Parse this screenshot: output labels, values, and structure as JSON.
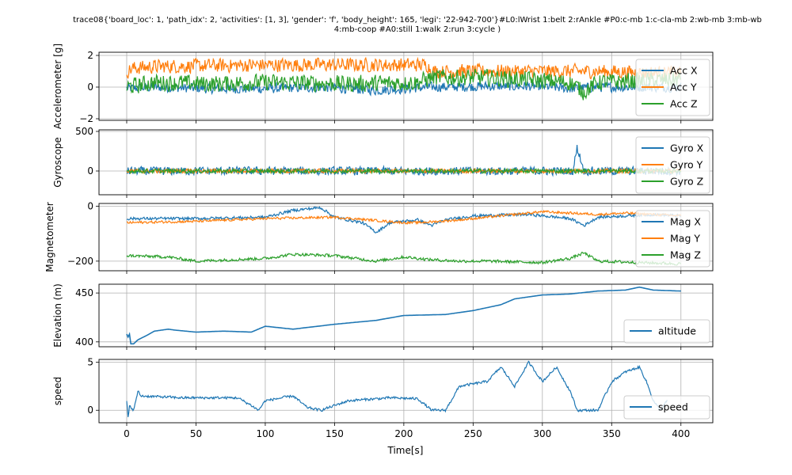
{
  "figure": {
    "title_line1": "trace08{'board_loc': 1, 'path_idx': 2, 'activities': [1, 3], 'gender': 'f', 'body_height': 165, 'legi': '22-942-700'}#L0:lWrist 1:belt 2:rAnkle #P0:c-mb 1:c-cla-mb 2:wb-mb 3:mb-wb",
    "title_line2": "4:mb-coop #A0:still 1:walk 2:run 3:cycle )",
    "xlabel": "Time[s]"
  },
  "colors": {
    "blue": "#1f77b4",
    "orange": "#ff7f0e",
    "green": "#2ca02c"
  },
  "chart_data": [
    {
      "type": "line",
      "ylabel": "Accelerometer [g]",
      "xlim": [
        -20,
        423
      ],
      "ylim": [
        -2.1,
        2.2
      ],
      "yticks": [
        -2,
        0,
        2
      ],
      "grid": true,
      "legend_position": "right",
      "series": [
        {
          "name": "Acc X",
          "color": "#1f77b4",
          "noise": 0.35,
          "points": [
            [
              0,
              -0.1
            ],
            [
              20,
              0.0
            ],
            [
              60,
              -0.1
            ],
            [
              100,
              -0.1
            ],
            [
              140,
              0.0
            ],
            [
              180,
              -0.2
            ],
            [
              220,
              0.0
            ],
            [
              260,
              0.05
            ],
            [
              300,
              0.05
            ],
            [
              320,
              -0.1
            ],
            [
              340,
              0.0
            ],
            [
              380,
              0.0
            ],
            [
              400,
              0.0
            ]
          ]
        },
        {
          "name": "Acc Y",
          "color": "#ff7f0e",
          "noise": 0.5,
          "points": [
            [
              0,
              1.0
            ],
            [
              5,
              1.2
            ],
            [
              20,
              1.3
            ],
            [
              100,
              1.4
            ],
            [
              200,
              1.4
            ],
            [
              217,
              1.4
            ],
            [
              220,
              1.0
            ],
            [
              260,
              1.0
            ],
            [
              300,
              1.0
            ],
            [
              340,
              1.0
            ],
            [
              380,
              0.9
            ],
            [
              400,
              0.9
            ]
          ]
        },
        {
          "name": "Acc Z",
          "color": "#2ca02c",
          "noise": 0.6,
          "points": [
            [
              0,
              0.0
            ],
            [
              20,
              0.3
            ],
            [
              60,
              0.2
            ],
            [
              100,
              0.3
            ],
            [
              160,
              0.2
            ],
            [
              210,
              0.3
            ],
            [
              220,
              0.6
            ],
            [
              260,
              0.6
            ],
            [
              300,
              0.4
            ],
            [
              320,
              0.3
            ],
            [
              330,
              -0.3
            ],
            [
              340,
              0.3
            ],
            [
              380,
              0.4
            ],
            [
              400,
              0.5
            ]
          ]
        }
      ]
    },
    {
      "type": "line",
      "ylabel": "Gyroscope",
      "xlim": [
        -20,
        423
      ],
      "ylim": [
        -300,
        520
      ],
      "yticks": [
        0,
        500
      ],
      "grid": true,
      "legend_position": "right",
      "series": [
        {
          "name": "Gyro X",
          "color": "#1f77b4",
          "noise": 60,
          "points": [
            [
              0,
              0
            ],
            [
              50,
              0
            ],
            [
              100,
              0
            ],
            [
              150,
              0
            ],
            [
              200,
              0
            ],
            [
              250,
              0
            ],
            [
              300,
              0
            ],
            [
              322,
              0
            ],
            [
              325,
              300
            ],
            [
              330,
              0
            ],
            [
              350,
              0
            ],
            [
              400,
              0
            ]
          ]
        },
        {
          "name": "Gyro Y",
          "color": "#ff7f0e",
          "noise": 30,
          "points": [
            [
              0,
              0
            ],
            [
              100,
              0
            ],
            [
              200,
              0
            ],
            [
              300,
              0
            ],
            [
              400,
              0
            ]
          ]
        },
        {
          "name": "Gyro Z",
          "color": "#2ca02c",
          "noise": 30,
          "points": [
            [
              0,
              0
            ],
            [
              100,
              0
            ],
            [
              200,
              0
            ],
            [
              300,
              0
            ],
            [
              400,
              0
            ]
          ]
        }
      ]
    },
    {
      "type": "line",
      "ylabel": "Magnetometer",
      "xlim": [
        -20,
        423
      ],
      "ylim": [
        -235,
        10
      ],
      "yticks": [
        -200,
        0
      ],
      "grid": true,
      "legend_position": "right",
      "series": [
        {
          "name": "Mag X",
          "color": "#1f77b4",
          "noise": 6,
          "points": [
            [
              0,
              -45
            ],
            [
              50,
              -45
            ],
            [
              100,
              -40
            ],
            [
              120,
              -15
            ],
            [
              140,
              -5
            ],
            [
              150,
              -40
            ],
            [
              170,
              -60
            ],
            [
              180,
              -95
            ],
            [
              190,
              -60
            ],
            [
              210,
              -50
            ],
            [
              220,
              -70
            ],
            [
              230,
              -50
            ],
            [
              250,
              -35
            ],
            [
              290,
              -30
            ],
            [
              320,
              -45
            ],
            [
              330,
              -70
            ],
            [
              340,
              -40
            ],
            [
              360,
              -35
            ],
            [
              380,
              -30
            ],
            [
              400,
              -35
            ]
          ]
        },
        {
          "name": "Mag Y",
          "color": "#ff7f0e",
          "noise": 5,
          "points": [
            [
              0,
              -60
            ],
            [
              50,
              -55
            ],
            [
              100,
              -45
            ],
            [
              150,
              -40
            ],
            [
              200,
              -60
            ],
            [
              210,
              -60
            ],
            [
              240,
              -50
            ],
            [
              280,
              -30
            ],
            [
              300,
              -20
            ],
            [
              320,
              -25
            ],
            [
              340,
              -30
            ],
            [
              360,
              -25
            ],
            [
              380,
              -30
            ],
            [
              400,
              -35
            ]
          ]
        },
        {
          "name": "Mag Z",
          "color": "#2ca02c",
          "noise": 6,
          "points": [
            [
              0,
              -180
            ],
            [
              30,
              -185
            ],
            [
              50,
              -200
            ],
            [
              100,
              -190
            ],
            [
              120,
              -175
            ],
            [
              150,
              -180
            ],
            [
              180,
              -200
            ],
            [
              200,
              -185
            ],
            [
              220,
              -195
            ],
            [
              240,
              -200
            ],
            [
              260,
              -200
            ],
            [
              300,
              -205
            ],
            [
              320,
              -190
            ],
            [
              330,
              -170
            ],
            [
              340,
              -200
            ],
            [
              370,
              -205
            ],
            [
              400,
              -210
            ]
          ]
        }
      ]
    },
    {
      "type": "line",
      "ylabel": "Elevation (m)",
      "xlim": [
        -20,
        423
      ],
      "ylim": [
        395,
        459
      ],
      "yticks": [
        400,
        450
      ],
      "grid": true,
      "legend_position": "lower right",
      "series": [
        {
          "name": "altitude",
          "color": "#1f77b4",
          "noise": 0,
          "points": [
            [
              0,
              408
            ],
            [
              1,
              405
            ],
            [
              2,
              408
            ],
            [
              3,
              398
            ],
            [
              5,
              398
            ],
            [
              8,
              402
            ],
            [
              15,
              407
            ],
            [
              20,
              411
            ],
            [
              30,
              413
            ],
            [
              35,
              412
            ],
            [
              50,
              410
            ],
            [
              70,
              411
            ],
            [
              90,
              410
            ],
            [
              100,
              416
            ],
            [
              120,
              413
            ],
            [
              150,
              418
            ],
            [
              180,
              422
            ],
            [
              200,
              427
            ],
            [
              230,
              428
            ],
            [
              250,
              432
            ],
            [
              270,
              438
            ],
            [
              280,
              444
            ],
            [
              300,
              448
            ],
            [
              320,
              449
            ],
            [
              340,
              452
            ],
            [
              360,
              453
            ],
            [
              370,
              456
            ],
            [
              380,
              453
            ],
            [
              400,
              452
            ]
          ]
        }
      ]
    },
    {
      "type": "line",
      "ylabel": "speed",
      "xlim": [
        -20,
        423
      ],
      "ylim": [
        -1.3,
        5.3
      ],
      "yticks": [
        0,
        5
      ],
      "grid": true,
      "legend_position": "lower right",
      "series": [
        {
          "name": "speed",
          "color": "#1f77b4",
          "noise": 0.15,
          "points": [
            [
              0,
              1.0
            ],
            [
              1,
              -1.0
            ],
            [
              2,
              0.5
            ],
            [
              5,
              0.0
            ],
            [
              8,
              2.0
            ],
            [
              10,
              1.5
            ],
            [
              40,
              1.3
            ],
            [
              80,
              1.3
            ],
            [
              90,
              0.5
            ],
            [
              95,
              0.0
            ],
            [
              100,
              1.0
            ],
            [
              120,
              1.5
            ],
            [
              130,
              0.3
            ],
            [
              140,
              0.0
            ],
            [
              160,
              1.0
            ],
            [
              190,
              1.3
            ],
            [
              210,
              1.2
            ],
            [
              220,
              0.0
            ],
            [
              230,
              0.0
            ],
            [
              240,
              2.5
            ],
            [
              260,
              3.0
            ],
            [
              270,
              4.5
            ],
            [
              280,
              2.5
            ],
            [
              290,
              5.0
            ],
            [
              300,
              3.0
            ],
            [
              310,
              4.5
            ],
            [
              320,
              2.0
            ],
            [
              325,
              0.0
            ],
            [
              340,
              0.0
            ],
            [
              350,
              3.0
            ],
            [
              360,
              4.0
            ],
            [
              370,
              4.5
            ],
            [
              375,
              3.0
            ],
            [
              380,
              1.0
            ],
            [
              385,
              0.0
            ],
            [
              390,
              1.0
            ]
          ]
        }
      ]
    }
  ]
}
